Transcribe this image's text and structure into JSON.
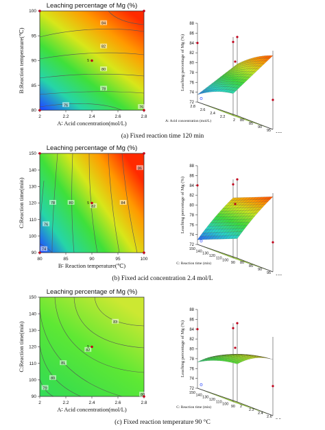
{
  "colors": {
    "low": "#1f3fff",
    "mid": "#3fe03a",
    "high": "#ff2a00"
  },
  "captions": [
    "(a) Fixed reaction time 120 min",
    "(b) Fixed acid concentration 2.4 mol/L",
    "(c) Fixed reaction temperature 90 °C"
  ],
  "chart_data": [
    {
      "type": "heatmap",
      "title": "Leaching percentage of Mg (%)",
      "xlabel": "A∶ Acid concentration(mol/L)",
      "ylabel": "B:Reaction temperature(℃)",
      "x_ticks": [
        "2",
        "2.2",
        "2.4",
        "2.6",
        "2.8"
      ],
      "y_ticks": [
        "80",
        "85",
        "90",
        "95",
        "100"
      ],
      "xlim": [
        2,
        2.8
      ],
      "ylim": [
        80,
        100
      ],
      "contour_labels": [
        {
          "label": "84",
          "x": 2.49,
          "y": 97.5
        },
        {
          "label": "82",
          "x": 2.49,
          "y": 92.8
        },
        {
          "label": "80",
          "x": 2.49,
          "y": 88.2
        },
        {
          "label": "78",
          "x": 2.49,
          "y": 84.3
        },
        {
          "label": "76",
          "x": 2.2,
          "y": 81.0
        },
        {
          "label": "76",
          "x": 2.78,
          "y": 80.6
        }
      ],
      "design_points": [
        {
          "x": 2,
          "y": 100
        },
        {
          "x": 2.8,
          "y": 100
        },
        {
          "x": 2.4,
          "y": 90
        },
        {
          "x": 2,
          "y": 80
        },
        {
          "x": 2.8,
          "y": 80
        }
      ],
      "center_count": "5"
    },
    {
      "type": "surface",
      "zlabel": "Leaching percentage of Mg (%)",
      "xlabel": "A: Acid concentration (mol/L)",
      "ylabel": "B: Reaction temperature (°C)",
      "z_ticks": [
        "72",
        "74",
        "76",
        "78",
        "80",
        "82",
        "84",
        "86",
        "88"
      ],
      "x_ticks": [
        "2",
        "2.2",
        "2.4",
        "2.6",
        "2.8"
      ],
      "y_ticks": [
        "80",
        "85",
        "90",
        "95",
        "100"
      ],
      "zlim": [
        72,
        88
      ]
    },
    {
      "type": "heatmap",
      "title": "Leaching percentage of Mg (%)",
      "xlabel": "B∶ Reaction temperature(℃)",
      "ylabel": "C:Reaction time(min)",
      "x_ticks": [
        "80",
        "85",
        "90",
        "95",
        "100"
      ],
      "y_ticks": [
        "90",
        "100",
        "110",
        "120",
        "130",
        "140",
        "150"
      ],
      "xlim": [
        80,
        100
      ],
      "ylim": [
        90,
        150
      ],
      "contour_labels": [
        {
          "label": "86",
          "x": 99.2,
          "y": 141
        },
        {
          "label": "84",
          "x": 96,
          "y": 120
        },
        {
          "label": "82",
          "x": 90.3,
          "y": 118
        },
        {
          "label": "80",
          "x": 86,
          "y": 120
        },
        {
          "label": "78",
          "x": 82.5,
          "y": 120
        },
        {
          "label": "76",
          "x": 81.2,
          "y": 107
        },
        {
          "label": "74",
          "x": 80.8,
          "y": 92
        }
      ],
      "design_points": [
        {
          "x": 80,
          "y": 150
        },
        {
          "x": 100,
          "y": 150
        },
        {
          "x": 90,
          "y": 120
        },
        {
          "x": 80,
          "y": 90
        },
        {
          "x": 100,
          "y": 90
        }
      ],
      "center_count": "5"
    },
    {
      "type": "surface",
      "zlabel": "Leaching percentage of Mg (%)",
      "xlabel": "C: Reaction time (min)",
      "ylabel": "B: Reaction temperature (°C)",
      "z_ticks": [
        "72",
        "74",
        "76",
        "78",
        "80",
        "82",
        "84",
        "86",
        "88"
      ],
      "x_ticks": [
        "90",
        "100",
        "110",
        "120",
        "130",
        "140",
        "150"
      ],
      "y_ticks": [
        "80",
        "85",
        "90",
        "95",
        "100"
      ],
      "zlim": [
        72,
        88
      ]
    },
    {
      "type": "heatmap",
      "title": "Leaching percentage of Mg (%)",
      "xlabel": "A∶ Acid concentration(mol/L)",
      "ylabel": "C:Reaction time(min)",
      "x_ticks": [
        "2",
        "2.2",
        "2.4",
        "2.6",
        "2.8"
      ],
      "y_ticks": [
        "90",
        "100",
        "110",
        "120",
        "130",
        "140",
        "150"
      ],
      "xlim": [
        2,
        2.8
      ],
      "ylim": [
        90,
        150
      ],
      "contour_labels": [
        {
          "label": "83",
          "x": 2.58,
          "y": 135
        },
        {
          "label": "82",
          "x": 2.37,
          "y": 118
        },
        {
          "label": "81",
          "x": 2.18,
          "y": 110
        },
        {
          "label": "80",
          "x": 2.1,
          "y": 101
        },
        {
          "label": "79",
          "x": 2.04,
          "y": 95
        },
        {
          "label": "80",
          "x": 2.79,
          "y": 91
        }
      ],
      "design_points": [
        {
          "x": 2.4,
          "y": 120
        },
        {
          "x": 2.8,
          "y": 90
        }
      ],
      "center_count": "5"
    },
    {
      "type": "surface",
      "zlabel": "Leaching percentage of Mg (%)",
      "xlabel": "C: Reaction time (min)",
      "ylabel": "A: Acid concentration (mol/L)",
      "z_ticks": [
        "72",
        "74",
        "76",
        "78",
        "80",
        "82",
        "84",
        "86",
        "88"
      ],
      "x_ticks": [
        "90",
        "100",
        "110",
        "120",
        "130",
        "140",
        "150"
      ],
      "y_ticks": [
        "2",
        "2.2",
        "2.4",
        "2.6",
        "2.8"
      ],
      "zlim": [
        72,
        88
      ]
    }
  ]
}
